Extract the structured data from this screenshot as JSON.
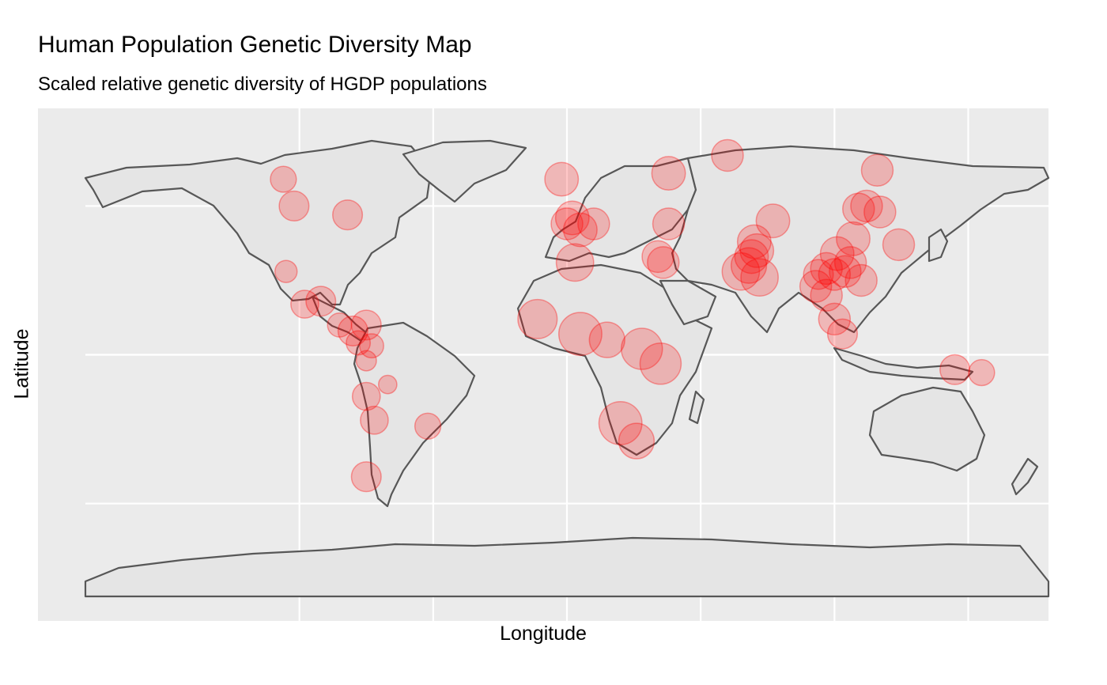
{
  "chart_data": {
    "type": "map-bubble",
    "title": "Human Population Genetic Diversity Map",
    "subtitle": "Scaled relative genetic diversity of HGDP populations",
    "xlabel": "Longitude",
    "ylabel": "Latitude",
    "xlim": [
      -180,
      180
    ],
    "ylim": [
      -90,
      90
    ],
    "grid": true,
    "marker_color": "#ff0000",
    "marker_alpha": 0.22,
    "populations": [
      {
        "lon": -106,
        "lat": 59,
        "size": 0.35
      },
      {
        "lon": -102,
        "lat": 50,
        "size": 0.45
      },
      {
        "lon": -82,
        "lat": 47,
        "size": 0.45
      },
      {
        "lon": -105,
        "lat": 28,
        "size": 0.25
      },
      {
        "lon": -98,
        "lat": 17,
        "size": 0.4
      },
      {
        "lon": -92,
        "lat": 18,
        "size": 0.45
      },
      {
        "lon": -85,
        "lat": 10,
        "size": 0.3
      },
      {
        "lon": -80,
        "lat": 8,
        "size": 0.45
      },
      {
        "lon": -75,
        "lat": 10,
        "size": 0.45
      },
      {
        "lon": -78,
        "lat": 4,
        "size": 0.3
      },
      {
        "lon": -73,
        "lat": 3,
        "size": 0.3
      },
      {
        "lon": -75,
        "lat": -2,
        "size": 0.2
      },
      {
        "lon": -67,
        "lat": -10,
        "size": 0.15
      },
      {
        "lon": -75,
        "lat": -14,
        "size": 0.4
      },
      {
        "lon": -72,
        "lat": -22,
        "size": 0.4
      },
      {
        "lon": -52,
        "lat": -24,
        "size": 0.35
      },
      {
        "lon": -75,
        "lat": -41,
        "size": 0.45
      },
      {
        "lon": -2,
        "lat": 59,
        "size": 0.55
      },
      {
        "lon": 0,
        "lat": 44,
        "size": 0.5
      },
      {
        "lon": 2,
        "lat": 46,
        "size": 0.55
      },
      {
        "lon": 5,
        "lat": 42,
        "size": 0.55
      },
      {
        "lon": 10,
        "lat": 44,
        "size": 0.5
      },
      {
        "lon": 3,
        "lat": 31,
        "size": 0.65
      },
      {
        "lon": 38,
        "lat": 61,
        "size": 0.55
      },
      {
        "lon": 38,
        "lat": 44,
        "size": 0.5
      },
      {
        "lon": 34,
        "lat": 33,
        "size": 0.5
      },
      {
        "lon": 36,
        "lat": 31,
        "size": 0.5
      },
      {
        "lon": 60,
        "lat": 67,
        "size": 0.5
      },
      {
        "lon": 77,
        "lat": 45,
        "size": 0.55
      },
      {
        "lon": 70,
        "lat": 38,
        "size": 0.55
      },
      {
        "lon": 68,
        "lat": 30,
        "size": 0.6
      },
      {
        "lon": 65,
        "lat": 28,
        "size": 0.65
      },
      {
        "lon": 72,
        "lat": 26,
        "size": 0.65
      },
      {
        "lon": 69,
        "lat": 33,
        "size": 0.55
      },
      {
        "lon": 71,
        "lat": 35,
        "size": 0.55
      },
      {
        "lon": 116,
        "lat": 62,
        "size": 0.5
      },
      {
        "lon": 109,
        "lat": 49,
        "size": 0.5
      },
      {
        "lon": 112,
        "lat": 50,
        "size": 0.5
      },
      {
        "lon": 117,
        "lat": 48,
        "size": 0.5
      },
      {
        "lon": 124,
        "lat": 37,
        "size": 0.5
      },
      {
        "lon": 107,
        "lat": 39,
        "size": 0.55
      },
      {
        "lon": 101,
        "lat": 34,
        "size": 0.55
      },
      {
        "lon": 97,
        "lat": 29,
        "size": 0.5
      },
      {
        "lon": 94,
        "lat": 27,
        "size": 0.45
      },
      {
        "lon": 93,
        "lat": 23,
        "size": 0.5
      },
      {
        "lon": 100,
        "lat": 27,
        "size": 0.5
      },
      {
        "lon": 104,
        "lat": 28,
        "size": 0.5
      },
      {
        "lon": 106,
        "lat": 31,
        "size": 0.5
      },
      {
        "lon": 110,
        "lat": 25,
        "size": 0.5
      },
      {
        "lon": 97,
        "lat": 20,
        "size": 0.5
      },
      {
        "lon": 100,
        "lat": 12,
        "size": 0.5
      },
      {
        "lon": 103,
        "lat": 7,
        "size": 0.45
      },
      {
        "lon": 145,
        "lat": -5,
        "size": 0.45
      },
      {
        "lon": 155,
        "lat": -6,
        "size": 0.35
      },
      {
        "lon": -11,
        "lat": 12,
        "size": 0.7
      },
      {
        "lon": 5,
        "lat": 7,
        "size": 0.8
      },
      {
        "lon": 15,
        "lat": 5,
        "size": 0.6
      },
      {
        "lon": 28,
        "lat": 2,
        "size": 0.75
      },
      {
        "lon": 35,
        "lat": -3,
        "size": 0.75
      },
      {
        "lon": 20,
        "lat": -23,
        "size": 0.8
      },
      {
        "lon": 26,
        "lat": -29,
        "size": 0.6
      }
    ]
  }
}
